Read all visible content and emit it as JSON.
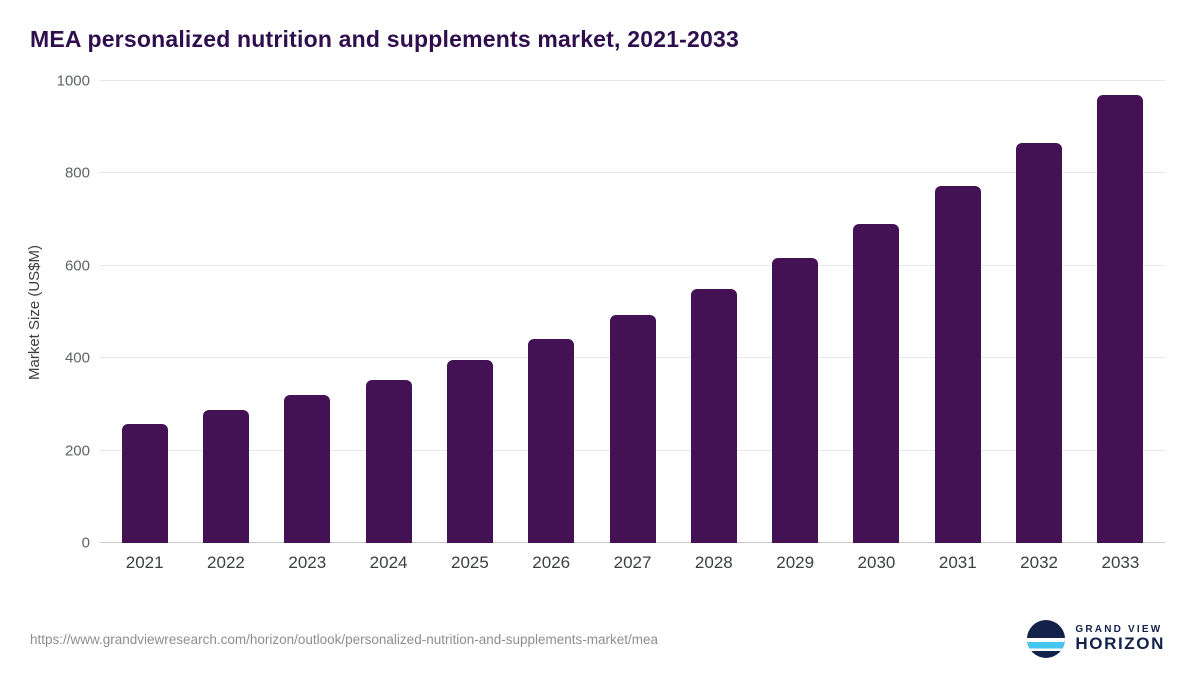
{
  "chart_data": {
    "type": "bar",
    "title": "MEA personalized nutrition and supplements market, 2021-2033",
    "categories": [
      "2021",
      "2022",
      "2023",
      "2024",
      "2025",
      "2026",
      "2027",
      "2028",
      "2029",
      "2030",
      "2031",
      "2032",
      "2033"
    ],
    "values": [
      258,
      287,
      320,
      353,
      396,
      441,
      493,
      550,
      616,
      690,
      772,
      865,
      970
    ],
    "xlabel": "",
    "ylabel": "Market Size (US$M)",
    "ylim": [
      0,
      1000
    ],
    "yticks": [
      0,
      200,
      400,
      600,
      800,
      1000
    ],
    "grid": true,
    "legend_position": "none",
    "bar_color": "#441254"
  },
  "footer": {
    "source_url": "https://www.grandviewresearch.com/horizon/outlook/personalized-nutrition-and-supplements-market/mea",
    "logo": {
      "line1": "GRAND VIEW",
      "line2": "HORIZON"
    }
  },
  "colors": {
    "title": "#2f0e4d",
    "axis_text": "#5f6368",
    "grid": "#e7e7e7",
    "logo_navy": "#13224a",
    "logo_blue": "#45c6f0"
  }
}
